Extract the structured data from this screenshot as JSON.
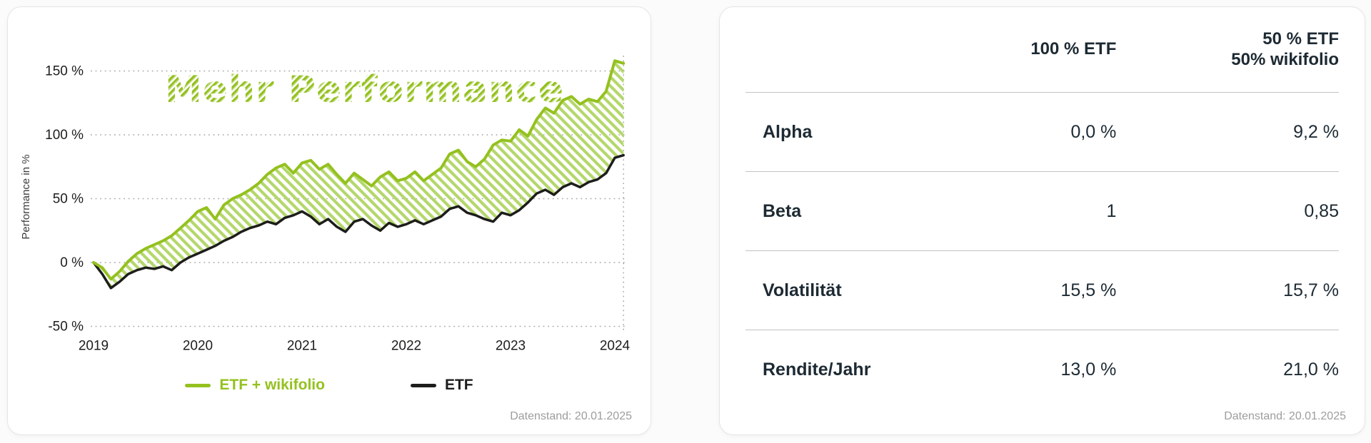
{
  "colors": {
    "accent_green": "#94c11f",
    "line_black": "#1d1d1b",
    "hatch_green": "#b4d76b",
    "muted_gray": "#9d9d9c",
    "table_text": "#1d2a33"
  },
  "left_card": {
    "datenstand": "Datenstand: 20.01.2025",
    "legend": [
      {
        "label": "ETF + wikifolio",
        "color": "#94c11f"
      },
      {
        "label": "ETF",
        "color": "#1d1d1b"
      }
    ]
  },
  "chart_data": {
    "type": "line",
    "title": "Mehr Performance",
    "xlabel": "",
    "ylabel": "Performance in %",
    "x_start": 2019,
    "points_per_year": 12,
    "x_ticks": [
      2019,
      2020,
      2021,
      2022,
      2023,
      2024
    ],
    "y_ticks": [
      150,
      100,
      50,
      0,
      -50
    ],
    "ylim": [
      -60,
      170
    ],
    "grid": "dotted-horizontal",
    "legend_position": "bottom",
    "fill_between_series": true,
    "hatch_color": "#b4d76b",
    "series": [
      {
        "name": "ETF + wikifolio",
        "color": "#94c11f",
        "values": [
          0,
          -4,
          -13,
          -7,
          1,
          7,
          11,
          14,
          17,
          21,
          27,
          33,
          40,
          43,
          34,
          45,
          50,
          53,
          57,
          62,
          69,
          74,
          77,
          70,
          78,
          80,
          73,
          77,
          69,
          62,
          70,
          65,
          60,
          67,
          71,
          64,
          66,
          71,
          64,
          69,
          74,
          85,
          88,
          79,
          75,
          81,
          92,
          96,
          95,
          104,
          99,
          112,
          121,
          117,
          127,
          130,
          124,
          128,
          126,
          134,
          158,
          156
        ]
      },
      {
        "name": "ETF",
        "color": "#1d1d1b",
        "values": [
          0,
          -9,
          -20,
          -15,
          -9,
          -6,
          -4,
          -5,
          -3,
          -6,
          0,
          4,
          7,
          10,
          13,
          17,
          20,
          24,
          27,
          29,
          32,
          30,
          35,
          37,
          40,
          36,
          30,
          34,
          28,
          24,
          32,
          34,
          29,
          25,
          31,
          28,
          30,
          33,
          30,
          33,
          36,
          42,
          44,
          39,
          37,
          34,
          32,
          39,
          37,
          41,
          47,
          54,
          57,
          53,
          59,
          62,
          59,
          63,
          65,
          70,
          82,
          84
        ]
      }
    ]
  },
  "right_card": {
    "columns": [
      "100 % ETF",
      [
        "50 % ETF",
        "50% wikifolio"
      ]
    ],
    "rows": [
      {
        "label": "Alpha",
        "values": [
          "0,0 %",
          "9,2 %"
        ]
      },
      {
        "label": "Beta",
        "values": [
          "1",
          "0,85"
        ]
      },
      {
        "label": "Volatilität",
        "values": [
          "15,5 %",
          "15,7 %"
        ]
      },
      {
        "label": "Rendite/Jahr",
        "values": [
          "13,0 %",
          "21,0 %"
        ]
      }
    ],
    "datenstand": "Datenstand: 20.01.2025"
  }
}
